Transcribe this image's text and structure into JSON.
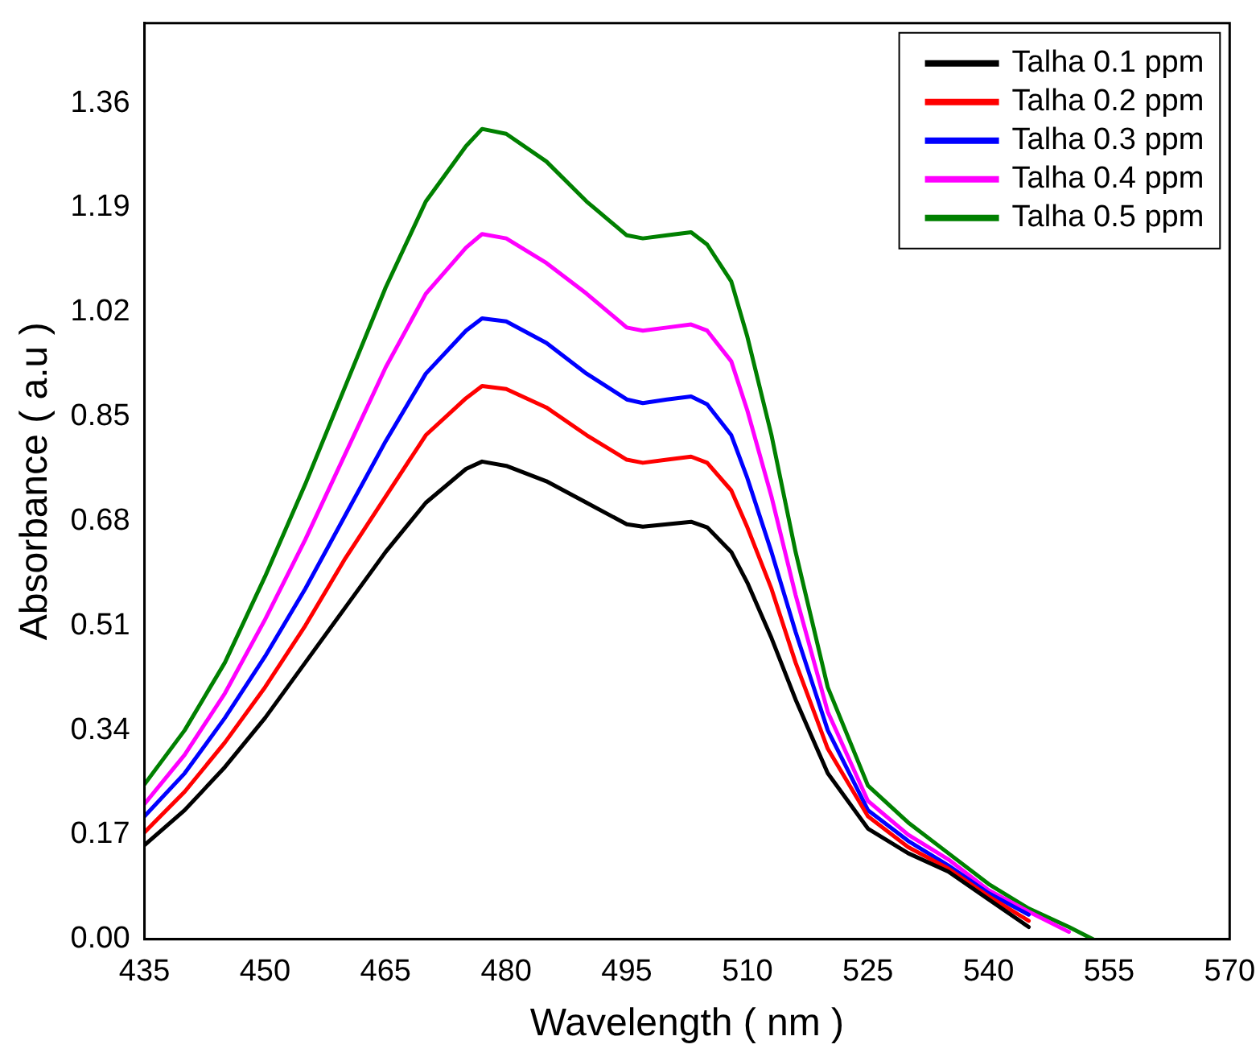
{
  "chart_data": {
    "type": "line",
    "xlabel": "Wavelength ( nm )",
    "ylabel": "Absorbance ( a.u )",
    "x": [
      435,
      440,
      445,
      450,
      455,
      460,
      465,
      470,
      475,
      477,
      480,
      485,
      490,
      495,
      497,
      500,
      503,
      505,
      508,
      510,
      513,
      516,
      520,
      525,
      530,
      535,
      540,
      545,
      550,
      553
    ],
    "xlim": [
      435,
      570
    ],
    "xticks": [
      435,
      450,
      465,
      480,
      495,
      510,
      525,
      540,
      555,
      570
    ],
    "ylim": [
      0,
      1.49
    ],
    "yticks": [
      {
        "value": 0,
        "label": "0.00"
      },
      0.17,
      0.34,
      0.51,
      0.68,
      0.85,
      1.02,
      1.19,
      1.36
    ],
    "grid": false,
    "legend": "top right",
    "marker": "none",
    "line_style": "solid",
    "series": [
      {
        "name": "Talha 0.1 ppm",
        "color": "#000000",
        "values": [
          0.153,
          0.21,
          0.28,
          0.36,
          0.45,
          0.54,
          0.63,
          0.71,
          0.765,
          0.777,
          0.77,
          0.745,
          0.71,
          0.675,
          0.671,
          0.675,
          0.679,
          0.67,
          0.63,
          0.58,
          0.49,
          0.39,
          0.27,
          0.18,
          0.14,
          0.11,
          0.065,
          0.02,
          null,
          null
        ]
      },
      {
        "name": "Talha 0.2 ppm",
        "color": "#ff0000",
        "values": [
          0.174,
          0.24,
          0.32,
          0.41,
          0.51,
          0.62,
          0.72,
          0.82,
          0.88,
          0.9,
          0.895,
          0.865,
          0.82,
          0.78,
          0.775,
          0.78,
          0.785,
          0.775,
          0.73,
          0.67,
          0.57,
          0.45,
          0.31,
          0.2,
          0.15,
          0.115,
          0.07,
          0.03,
          null,
          null
        ]
      },
      {
        "name": "Talha 0.3 ppm",
        "color": "#0000ff",
        "values": [
          0.2,
          0.27,
          0.36,
          0.46,
          0.57,
          0.69,
          0.81,
          0.92,
          0.99,
          1.01,
          1.005,
          0.97,
          0.92,
          0.878,
          0.872,
          0.878,
          0.883,
          0.87,
          0.82,
          0.75,
          0.63,
          0.5,
          0.34,
          0.21,
          0.16,
          0.12,
          0.075,
          0.04,
          null,
          null
        ]
      },
      {
        "name": "Talha 0.4 ppm",
        "color": "#ff00ff",
        "values": [
          0.22,
          0.3,
          0.4,
          0.52,
          0.65,
          0.79,
          0.93,
          1.05,
          1.125,
          1.147,
          1.14,
          1.1,
          1.05,
          0.995,
          0.99,
          0.995,
          1.0,
          0.99,
          0.94,
          0.86,
          0.72,
          0.56,
          0.37,
          0.225,
          0.17,
          0.13,
          0.08,
          0.045,
          0.012,
          null
        ]
      },
      {
        "name": "Talha 0.5 ppm",
        "color": "#008000",
        "values": [
          0.252,
          0.34,
          0.45,
          0.59,
          0.74,
          0.9,
          1.06,
          1.2,
          1.29,
          1.318,
          1.31,
          1.265,
          1.2,
          1.145,
          1.14,
          1.145,
          1.15,
          1.13,
          1.07,
          0.98,
          0.82,
          0.63,
          0.41,
          0.25,
          0.19,
          0.14,
          0.09,
          0.05,
          0.02,
          0
        ]
      }
    ]
  }
}
